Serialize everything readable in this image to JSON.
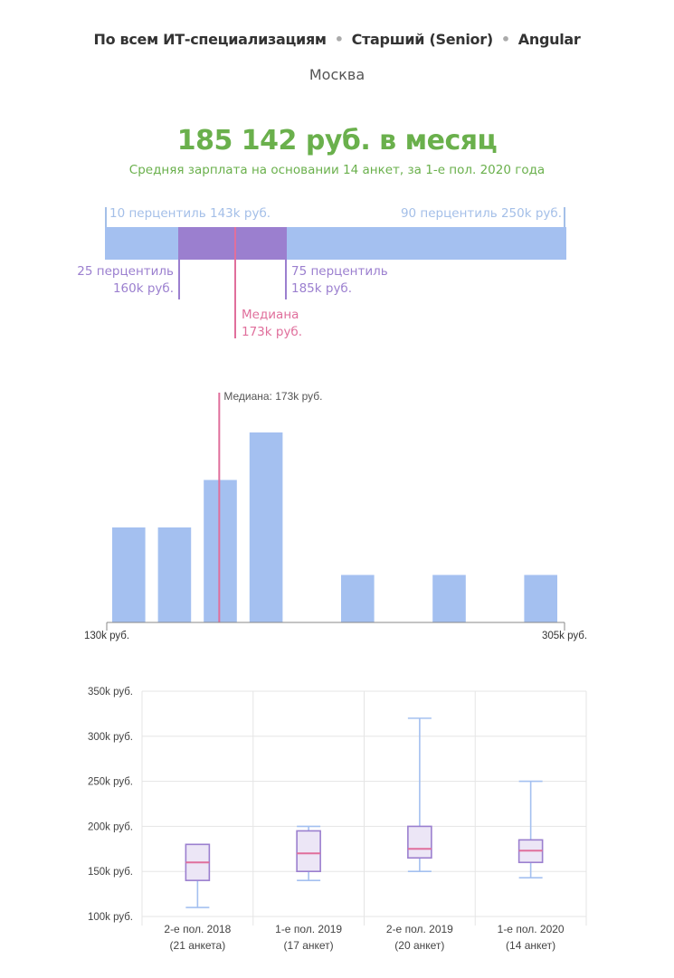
{
  "header": {
    "crumbs": [
      "По всем ИТ-специализациям",
      "Старший (Senior)",
      "Angular"
    ],
    "separator": "•",
    "city": "Москва"
  },
  "summary": {
    "headline": "185 142 руб. в месяц",
    "subline": "Средняя зарплата на основании 14 анкет, за 1-е пол. 2020 года"
  },
  "percentiles": {
    "p10_label": "10 перцентиль 143k руб.",
    "p90_label": "90 перцентиль 250k руб.",
    "p25_label_1": "25 перцентиль",
    "p25_label_2": "160k руб.",
    "p75_label_1": "75 перцентиль",
    "p75_label_2": "185k руб.",
    "median_label_1": "Медиана",
    "median_label_2": "173k руб.",
    "values": {
      "p10": 143,
      "p25": 160,
      "median": 173,
      "p75": 185,
      "p90": 250
    },
    "colors": {
      "band": "#a4c0f0",
      "iqr": "#9b7fcf",
      "median": "#e06f9c",
      "edge": "#a4bfe8"
    }
  },
  "chart_data": [
    {
      "type": "bar",
      "xlim": [
        130,
        305
      ],
      "x_unit": "k руб.",
      "xtick_labels": [
        "130k руб.",
        "305k руб."
      ],
      "bins": [
        {
          "x0": 130,
          "x1": 147.5,
          "count": 2
        },
        {
          "x0": 147.5,
          "x1": 165,
          "count": 2
        },
        {
          "x0": 165,
          "x1": 182.5,
          "count": 3
        },
        {
          "x0": 182.5,
          "x1": 200,
          "count": 4
        },
        {
          "x0": 200,
          "x1": 217.5,
          "count": 0
        },
        {
          "x0": 217.5,
          "x1": 235,
          "count": 1
        },
        {
          "x0": 235,
          "x1": 252.5,
          "count": 0
        },
        {
          "x0": 252.5,
          "x1": 270,
          "count": 1
        },
        {
          "x0": 270,
          "x1": 287.5,
          "count": 0
        },
        {
          "x0": 287.5,
          "x1": 305,
          "count": 1
        }
      ],
      "median": 173,
      "median_label": "Медиана: 173k руб.",
      "colors": {
        "bar": "#a4c0f0",
        "median": "#e06f9c",
        "axis": "#888888"
      }
    },
    {
      "type": "boxplot",
      "ylim": [
        100,
        350
      ],
      "y_ticks": [
        100,
        150,
        200,
        250,
        300,
        350
      ],
      "y_tick_labels": [
        "100k руб.",
        "150k руб.",
        "200k руб.",
        "250k руб.",
        "300k руб.",
        "350k руб."
      ],
      "grid": true,
      "categories": [
        {
          "label_1": "2-е пол. 2018",
          "label_2": "(21 анкета)",
          "min": 110,
          "q1": 140,
          "median": 160,
          "q3": 180,
          "max": 180
        },
        {
          "label_1": "1-е пол. 2019",
          "label_2": "(17 анкет)",
          "min": 140,
          "q1": 150,
          "median": 170,
          "q3": 195,
          "max": 200
        },
        {
          "label_1": "2-е пол. 2019",
          "label_2": "(20 анкет)",
          "min": 150,
          "q1": 165,
          "median": 175,
          "q3": 200,
          "max": 320
        },
        {
          "label_1": "1-е пол. 2020",
          "label_2": "(14 анкет)",
          "min": 143,
          "q1": 160,
          "median": 173,
          "q3": 185,
          "max": 250
        }
      ],
      "colors": {
        "whisker": "#a4c0f0",
        "box_stroke": "#9b7fcf",
        "box_fill": "#ece6f6",
        "median": "#e06f9c",
        "grid": "#e5e5e5"
      }
    }
  ]
}
